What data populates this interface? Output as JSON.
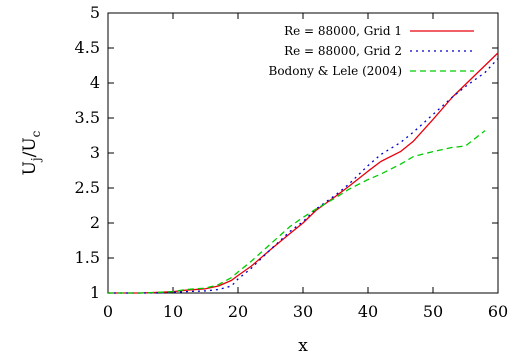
{
  "chart_data": {
    "type": "line",
    "xlabel": "x",
    "ylabel_main": "U",
    "ylabel_sub1": "j",
    "ylabel_mid": "/U",
    "ylabel_sub2": "c",
    "xlim": [
      0,
      60
    ],
    "ylim": [
      1,
      5
    ],
    "xticks": [
      0,
      10,
      20,
      30,
      40,
      50,
      60
    ],
    "yticks": [
      1,
      1.5,
      2,
      2.5,
      3,
      3.5,
      4,
      4.5,
      5
    ],
    "xtick_labels": [
      "0",
      "10",
      "20",
      "30",
      "40",
      "50",
      "60"
    ],
    "ytick_labels": [
      "1",
      "1.5",
      "2",
      "2.5",
      "3",
      "3.5",
      "4",
      "4.5",
      "5"
    ],
    "grid": false,
    "legend_position": "top-right",
    "series": [
      {
        "name": "Re = 88000, Grid 1",
        "color": "#e8000b",
        "dash": "solid",
        "x": [
          0,
          5,
          8,
          10,
          12,
          15,
          17,
          19,
          20,
          22,
          25,
          28,
          30,
          32,
          35,
          37,
          40,
          42,
          45,
          47,
          50,
          53,
          55,
          58,
          60
        ],
        "y": [
          1.0,
          1.0,
          1.01,
          1.02,
          1.04,
          1.06,
          1.1,
          1.18,
          1.25,
          1.38,
          1.62,
          1.85,
          2.0,
          2.18,
          2.38,
          2.52,
          2.74,
          2.88,
          3.02,
          3.17,
          3.48,
          3.8,
          3.98,
          4.25,
          4.43
        ]
      },
      {
        "name": "Re = 88000, Grid 2",
        "color": "#0000cc",
        "dash": "dotted",
        "x": [
          0,
          5,
          8,
          10,
          12,
          15,
          17,
          19,
          20,
          22,
          25,
          28,
          30,
          32,
          35,
          37,
          40,
          42,
          45,
          47,
          50,
          53,
          55,
          58,
          60
        ],
        "y": [
          1.0,
          1.0,
          1.0,
          1.01,
          1.02,
          1.03,
          1.05,
          1.1,
          1.2,
          1.35,
          1.62,
          1.88,
          2.02,
          2.2,
          2.4,
          2.55,
          2.82,
          2.98,
          3.15,
          3.3,
          3.55,
          3.8,
          3.95,
          4.15,
          4.35
        ]
      },
      {
        "name": "Bodony & Lele (2004)",
        "color": "#00cc00",
        "dash": "dashed",
        "x": [
          0,
          5,
          8,
          10,
          12,
          15,
          17,
          19,
          20,
          22,
          25,
          28,
          30,
          32,
          35,
          37,
          40,
          42,
          45,
          47,
          50,
          53,
          55,
          58
        ],
        "y": [
          1.0,
          1.0,
          1.01,
          1.02,
          1.05,
          1.07,
          1.12,
          1.22,
          1.3,
          1.45,
          1.7,
          1.95,
          2.08,
          2.2,
          2.36,
          2.48,
          2.62,
          2.7,
          2.84,
          2.95,
          3.02,
          3.08,
          3.1,
          3.32
        ]
      }
    ]
  }
}
